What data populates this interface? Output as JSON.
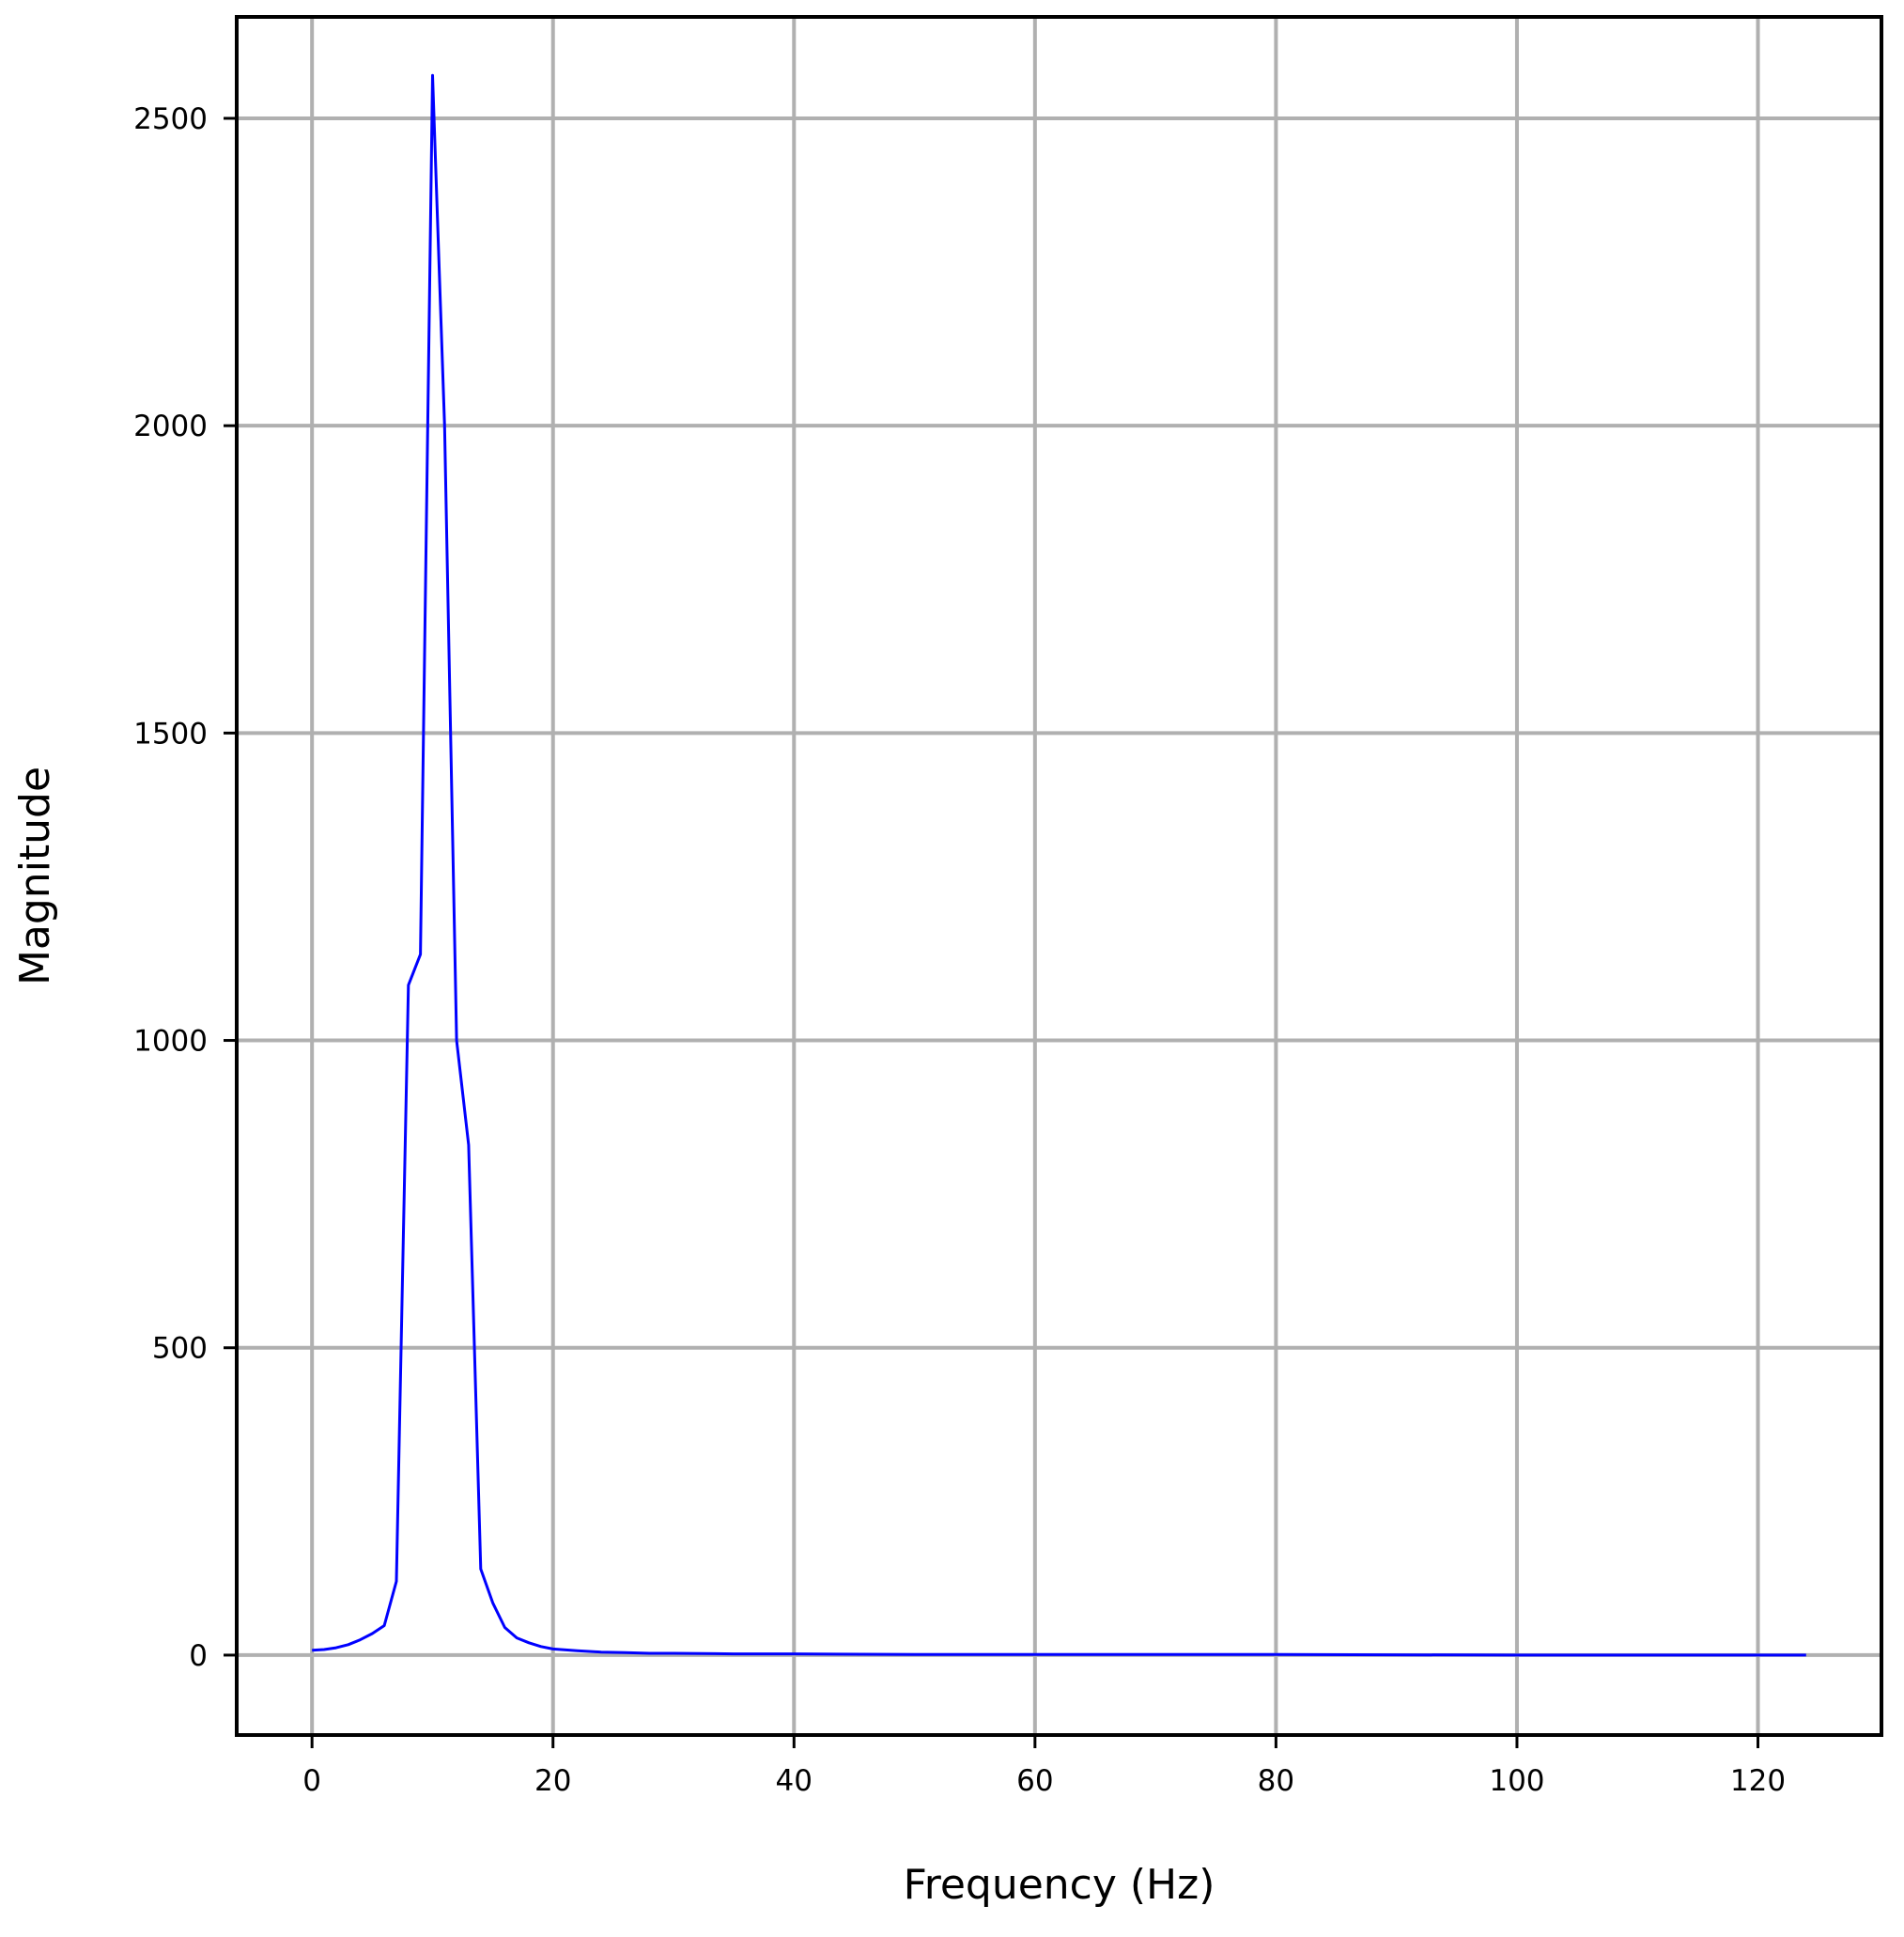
{
  "chart_data": {
    "type": "line",
    "title": "",
    "xlabel": "Frequency (Hz)",
    "ylabel": "Magnitude",
    "xlim": [
      -6.25,
      130.25
    ],
    "ylim": [
      -130,
      2665
    ],
    "xticks": [
      0,
      20,
      40,
      60,
      80,
      100,
      120
    ],
    "yticks": [
      0,
      500,
      1000,
      1500,
      2000,
      2500
    ],
    "grid": true,
    "legend": "none",
    "series": [
      {
        "color": "#0000ff",
        "x": [
          0,
          1,
          2,
          3,
          4,
          5,
          6,
          7,
          8,
          9,
          10,
          11,
          12,
          13,
          14,
          15,
          16,
          17,
          18,
          19,
          20,
          22,
          24,
          26,
          28,
          30,
          35,
          40,
          50,
          60,
          80,
          100,
          124
        ],
        "y": [
          8,
          9,
          12,
          17,
          25,
          35,
          48,
          120,
          1090,
          1140,
          2570,
          2000,
          1000,
          830,
          140,
          85,
          45,
          28,
          20,
          14,
          10,
          7,
          5,
          4,
          3,
          3,
          2,
          2,
          1,
          1,
          1,
          0,
          0
        ]
      }
    ]
  }
}
